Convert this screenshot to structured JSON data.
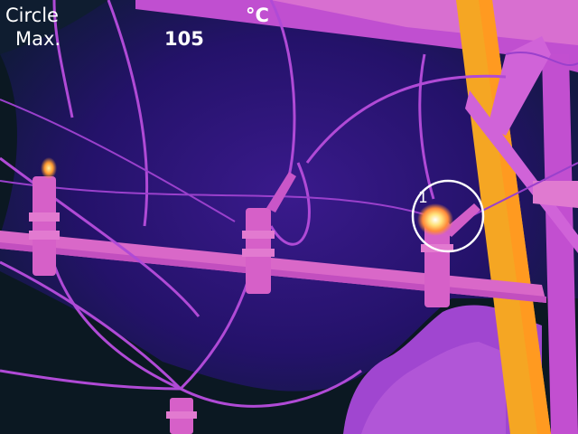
{
  "overlay": {
    "mode_label": "Circle",
    "stat_label": "Max.",
    "unit": "°C",
    "max_value": "105"
  },
  "measurement_marker": {
    "id": "1",
    "shape": "circle"
  },
  "palette": {
    "background_cold": "#0b1822",
    "background_mid": "#28146e",
    "structure_warm": "#d04fd8",
    "structure_pink": "#e06fd0",
    "pole_hot": "#f5a623",
    "hotspot": "#fff7d1",
    "overlay_text": "#ffffff"
  }
}
